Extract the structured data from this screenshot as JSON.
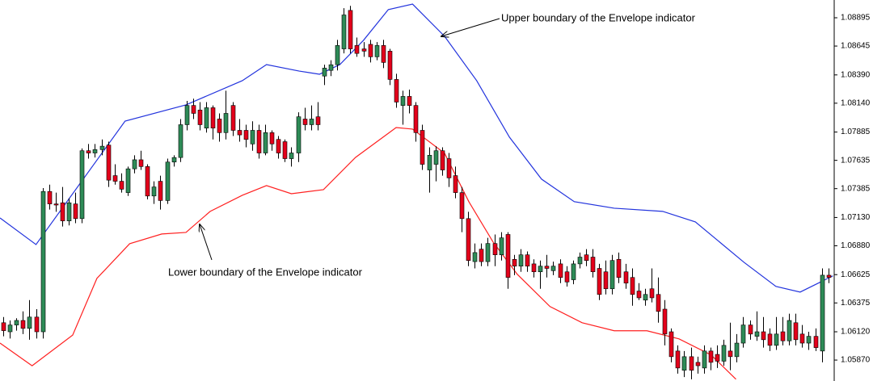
{
  "chart_data": {
    "type": "candlestick",
    "up_color": "#2e8b57",
    "down_color": "#e3001b",
    "xlim": [
      -0.5,
      126.9
    ],
    "ylim": [
      1.05685,
      1.09052
    ],
    "yticks": [
      1.08895,
      1.08645,
      {
        "value": 1.0839,
        "label": "1.08390"
      },
      {
        "value": 1.0814,
        "label": "1.08140"
      },
      1.07885,
      1.07635,
      1.07385,
      {
        "value": 1.0713,
        "label": "1.07130"
      },
      {
        "value": 1.0688,
        "label": "1.06880"
      },
      1.06625,
      1.06375,
      {
        "value": 1.0612,
        "label": "1.06120"
      },
      {
        "value": 1.0587,
        "label": "1.05870"
      }
    ],
    "ohlc": [
      [
        1.062,
        1.0625,
        1.0608,
        1.0613
      ],
      [
        1.0612,
        1.0622,
        1.0606,
        1.0618
      ],
      [
        1.0618,
        1.0624,
        1.0613,
        1.0622
      ],
      [
        1.0622,
        1.063,
        1.061,
        1.0615
      ],
      [
        1.0615,
        1.064,
        1.0605,
        1.0625
      ],
      [
        1.0625,
        1.0632,
        1.0606,
        1.0612
      ],
      [
        1.0612,
        1.0739,
        1.0606,
        1.0736
      ],
      [
        1.0736,
        1.0742,
        1.072,
        1.0725
      ],
      [
        1.0725,
        1.0735,
        1.0718,
        1.0724
      ],
      [
        1.0726,
        1.074,
        1.0705,
        1.071
      ],
      [
        1.071,
        1.073,
        1.0706,
        1.0726
      ],
      [
        1.0725,
        1.0735,
        1.0708,
        1.0712
      ],
      [
        1.0712,
        1.0774,
        1.0708,
        1.0772
      ],
      [
        1.0772,
        1.0778,
        1.0765,
        1.077
      ],
      [
        1.077,
        1.0778,
        1.0766,
        1.0773
      ],
      [
        1.0773,
        1.0782,
        1.0768,
        1.0776
      ],
      [
        1.0777,
        1.078,
        1.074,
        1.0746
      ],
      [
        1.075,
        1.076,
        1.0742,
        1.0745
      ],
      [
        1.0745,
        1.0752,
        1.0735,
        1.0738
      ],
      [
        1.0735,
        1.0758,
        1.0732,
        1.0756
      ],
      [
        1.0756,
        1.0768,
        1.0752,
        1.0764
      ],
      [
        1.0764,
        1.0772,
        1.0755,
        1.0758
      ],
      [
        1.0758,
        1.076,
        1.0729,
        1.0732
      ],
      [
        1.0732,
        1.0745,
        1.0725,
        1.074
      ],
      [
        1.0745,
        1.075,
        1.072,
        1.0728
      ],
      [
        1.0728,
        1.0765,
        1.0725,
        1.0762
      ],
      [
        1.0762,
        1.0768,
        1.0758,
        1.0766
      ],
      [
        1.0766,
        1.08,
        1.0762,
        1.0795
      ],
      [
        1.0795,
        1.0816,
        1.079,
        1.0812
      ],
      [
        1.0812,
        1.0818,
        1.08,
        1.0805
      ],
      [
        1.0808,
        1.0815,
        1.079,
        1.0795
      ],
      [
        1.0792,
        1.0815,
        1.0788,
        1.081
      ],
      [
        1.081,
        1.0812,
        1.0782,
        1.0792
      ],
      [
        1.08,
        1.0805,
        1.078,
        1.0788
      ],
      [
        1.0788,
        1.0825,
        1.0782,
        1.0805
      ],
      [
        1.0812,
        1.0815,
        1.0785,
        1.079
      ],
      [
        1.079,
        1.08,
        1.078,
        1.0786
      ],
      [
        1.079,
        1.0795,
        1.0775,
        1.0782
      ],
      [
        1.0778,
        1.0798,
        1.0772,
        1.079
      ],
      [
        1.079,
        1.0795,
        1.0765,
        1.077
      ],
      [
        1.077,
        1.0795,
        1.0768,
        1.0788
      ],
      [
        1.0788,
        1.079,
        1.0772,
        1.0778
      ],
      [
        1.0782,
        1.0785,
        1.0765,
        1.077
      ],
      [
        1.078,
        1.0782,
        1.0762,
        1.0765
      ],
      [
        1.0765,
        1.0775,
        1.0758,
        1.077
      ],
      [
        1.077,
        1.0806,
        1.0762,
        1.0802
      ],
      [
        1.08,
        1.081,
        1.079,
        1.0795
      ],
      [
        1.0795,
        1.0812,
        1.079,
        1.08
      ],
      [
        1.0802,
        1.0815,
        1.079,
        1.0795
      ],
      [
        1.0838,
        1.0848,
        1.083,
        1.0845
      ],
      [
        1.0843,
        1.0852,
        1.0838,
        1.0848
      ],
      [
        1.0848,
        1.087,
        1.0843,
        1.0865
      ],
      [
        1.0862,
        1.0898,
        1.0858,
        1.0892
      ],
      [
        1.0896,
        1.09,
        1.0858,
        1.0862
      ],
      [
        1.0865,
        1.0872,
        1.0855,
        1.0858
      ],
      [
        1.0862,
        1.0868,
        1.0855,
        1.086
      ],
      [
        1.0866,
        1.087,
        1.085,
        1.0855
      ],
      [
        1.0855,
        1.0868,
        1.0852,
        1.0865
      ],
      [
        1.0865,
        1.087,
        1.0845,
        1.085
      ],
      [
        1.086,
        1.0862,
        1.083,
        1.0835
      ],
      [
        1.0835,
        1.084,
        1.081,
        1.0815
      ],
      [
        1.0812,
        1.0825,
        1.0795,
        1.082
      ],
      [
        1.082,
        1.0826,
        1.0805,
        1.0812
      ],
      [
        1.0812,
        1.0815,
        1.078,
        1.0788
      ],
      [
        1.079,
        1.0795,
        1.0755,
        1.076
      ],
      [
        1.0755,
        1.0775,
        1.0735,
        1.0768
      ],
      [
        1.076,
        1.0776,
        1.0745,
        1.0772
      ],
      [
        1.0772,
        1.0775,
        1.075,
        1.0755
      ],
      [
        1.0765,
        1.077,
        1.074,
        1.0748
      ],
      [
        1.075,
        1.0758,
        1.073,
        1.0735
      ],
      [
        1.0735,
        1.074,
        1.07,
        1.0712
      ],
      [
        1.0712,
        1.0718,
        1.067,
        1.0675
      ],
      [
        1.0674,
        1.069,
        1.0668,
        1.0682
      ],
      [
        1.0685,
        1.069,
        1.067,
        1.0674
      ],
      [
        1.0674,
        1.0695,
        1.067,
        1.069
      ],
      [
        1.069,
        1.0698,
        1.067,
        1.068
      ],
      [
        1.068,
        1.07,
        1.0675,
        1.0695
      ],
      [
        1.0698,
        1.07,
        1.065,
        1.066
      ],
      [
        1.0676,
        1.068,
        1.0662,
        1.067
      ],
      [
        1.067,
        1.0685,
        1.0665,
        1.068
      ],
      [
        1.068,
        1.0683,
        1.0665,
        1.067
      ],
      [
        1.0672,
        1.0676,
        1.066,
        1.0665
      ],
      [
        1.0665,
        1.0675,
        1.065,
        1.067
      ],
      [
        1.067,
        1.068,
        1.066,
        1.0668
      ],
      [
        1.0666,
        1.0674,
        1.0662,
        1.067
      ],
      [
        1.0672,
        1.0676,
        1.0655,
        1.066
      ],
      [
        1.0665,
        1.067,
        1.0652,
        1.0656
      ],
      [
        1.0658,
        1.0675,
        1.0654,
        1.0672
      ],
      [
        1.0672,
        1.0682,
        1.0668,
        1.0678
      ],
      [
        1.068,
        1.0685,
        1.067,
        1.0675
      ],
      [
        1.0678,
        1.0685,
        1.066,
        1.0665
      ],
      [
        1.0668,
        1.0672,
        1.064,
        1.0645
      ],
      [
        1.0665,
        1.0675,
        1.0645,
        1.065
      ],
      [
        1.065,
        1.068,
        1.0645,
        1.0675
      ],
      [
        1.0676,
        1.0682,
        1.0655,
        1.066
      ],
      [
        1.0665,
        1.0672,
        1.065,
        1.0655
      ],
      [
        1.066,
        1.0668,
        1.0635,
        1.0645
      ],
      [
        1.0648,
        1.0655,
        1.064,
        1.0642
      ],
      [
        1.064,
        1.065,
        1.0635,
        1.0645
      ],
      [
        1.065,
        1.0668,
        1.0638,
        1.0642
      ],
      [
        1.0645,
        1.066,
        1.062,
        1.063
      ],
      [
        1.0632,
        1.064,
        1.06,
        1.061
      ],
      [
        1.0612,
        1.0615,
        1.0585,
        1.059
      ],
      [
        1.0595,
        1.06,
        1.0575,
        1.058
      ],
      [
        1.0578,
        1.0595,
        1.0572,
        1.059
      ],
      [
        1.059,
        1.0598,
        1.057,
        1.0578
      ],
      [
        1.0585,
        1.059,
        1.0575,
        1.0582
      ],
      [
        1.058,
        1.06,
        1.0575,
        1.0595
      ],
      [
        1.0595,
        1.0598,
        1.0578,
        1.0585
      ],
      [
        1.0592,
        1.06,
        1.058,
        1.0586
      ],
      [
        1.0586,
        1.0605,
        1.0582,
        1.06
      ],
      [
        1.0595,
        1.062,
        1.0578,
        1.059
      ],
      [
        1.059,
        1.061,
        1.0585,
        1.0602
      ],
      [
        1.0602,
        1.0625,
        1.0598,
        1.0618
      ],
      [
        1.0618,
        1.0622,
        1.0605,
        1.061
      ],
      [
        1.0608,
        1.063,
        1.0604,
        1.0612
      ],
      [
        1.0612,
        1.0625,
        1.0598,
        1.0605
      ],
      [
        1.061,
        1.0615,
        1.0595,
        1.06
      ],
      [
        1.06,
        1.0625,
        1.0596,
        1.061
      ],
      [
        1.0612,
        1.0625,
        1.06,
        1.0604
      ],
      [
        1.0604,
        1.0628,
        1.06,
        1.0622
      ],
      [
        1.062,
        1.0628,
        1.06,
        1.0605
      ],
      [
        1.061,
        1.0618,
        1.0598,
        1.0602
      ],
      [
        1.0602,
        1.0612,
        1.0596,
        1.0608
      ],
      [
        1.0608,
        1.0615,
        1.0595,
        1.0598
      ],
      [
        1.0595,
        1.0668,
        1.0585,
        1.0662
      ],
      [
        1.0662,
        1.0668,
        1.0655,
        1.066
      ]
    ],
    "series": [
      {
        "color": "#2233dd",
        "x": [
          -0.5,
          5,
          18.6,
          27.9,
          36.5,
          40.2,
          45.2,
          48.3,
          51.4,
          55,
          58.8,
          62.5,
          67.4,
          72.3,
          77.3,
          82.2,
          87.2,
          93.3,
          100.7,
          105.7,
          113.1,
          118,
          121.7,
          126.7
        ],
        "values": [
          1.07126,
          1.06891,
          1.07982,
          1.08125,
          1.08339,
          1.08481,
          1.08424,
          1.08396,
          1.08481,
          1.08695,
          1.08967,
          1.09016,
          1.08731,
          1.08339,
          1.0784,
          1.07469,
          1.0727,
          1.07212,
          1.07184,
          1.07091,
          1.06735,
          1.06521,
          1.06471,
          1.06614
        ]
      },
      {
        "color": "#ff2020",
        "x": [
          -0.5,
          4.4,
          10.6,
          14.3,
          19.3,
          24.2,
          27.9,
          31.6,
          36.5,
          40.2,
          44,
          48.9,
          53.8,
          60,
          62.5,
          67.4,
          71.1,
          74.8,
          78.5,
          83.5,
          88.4,
          93.3,
          98.3,
          103.2,
          108.1,
          111.9
        ],
        "values": [
          1.0602,
          1.0582,
          1.06091,
          1.06592,
          1.06898,
          1.06984,
          1.06998,
          1.07184,
          1.07326,
          1.07412,
          1.0734,
          1.07376,
          1.07661,
          1.07925,
          1.07911,
          1.07697,
          1.0727,
          1.06913,
          1.06628,
          1.06343,
          1.062,
          1.06129,
          1.06129,
          1.06057,
          1.05915,
          1.05701
        ]
      }
    ],
    "annotations": [
      {
        "text": "Upper boundary of the Envelope indicator"
      },
      {
        "text": "Lower boundary of the Envelope indicator"
      }
    ]
  }
}
